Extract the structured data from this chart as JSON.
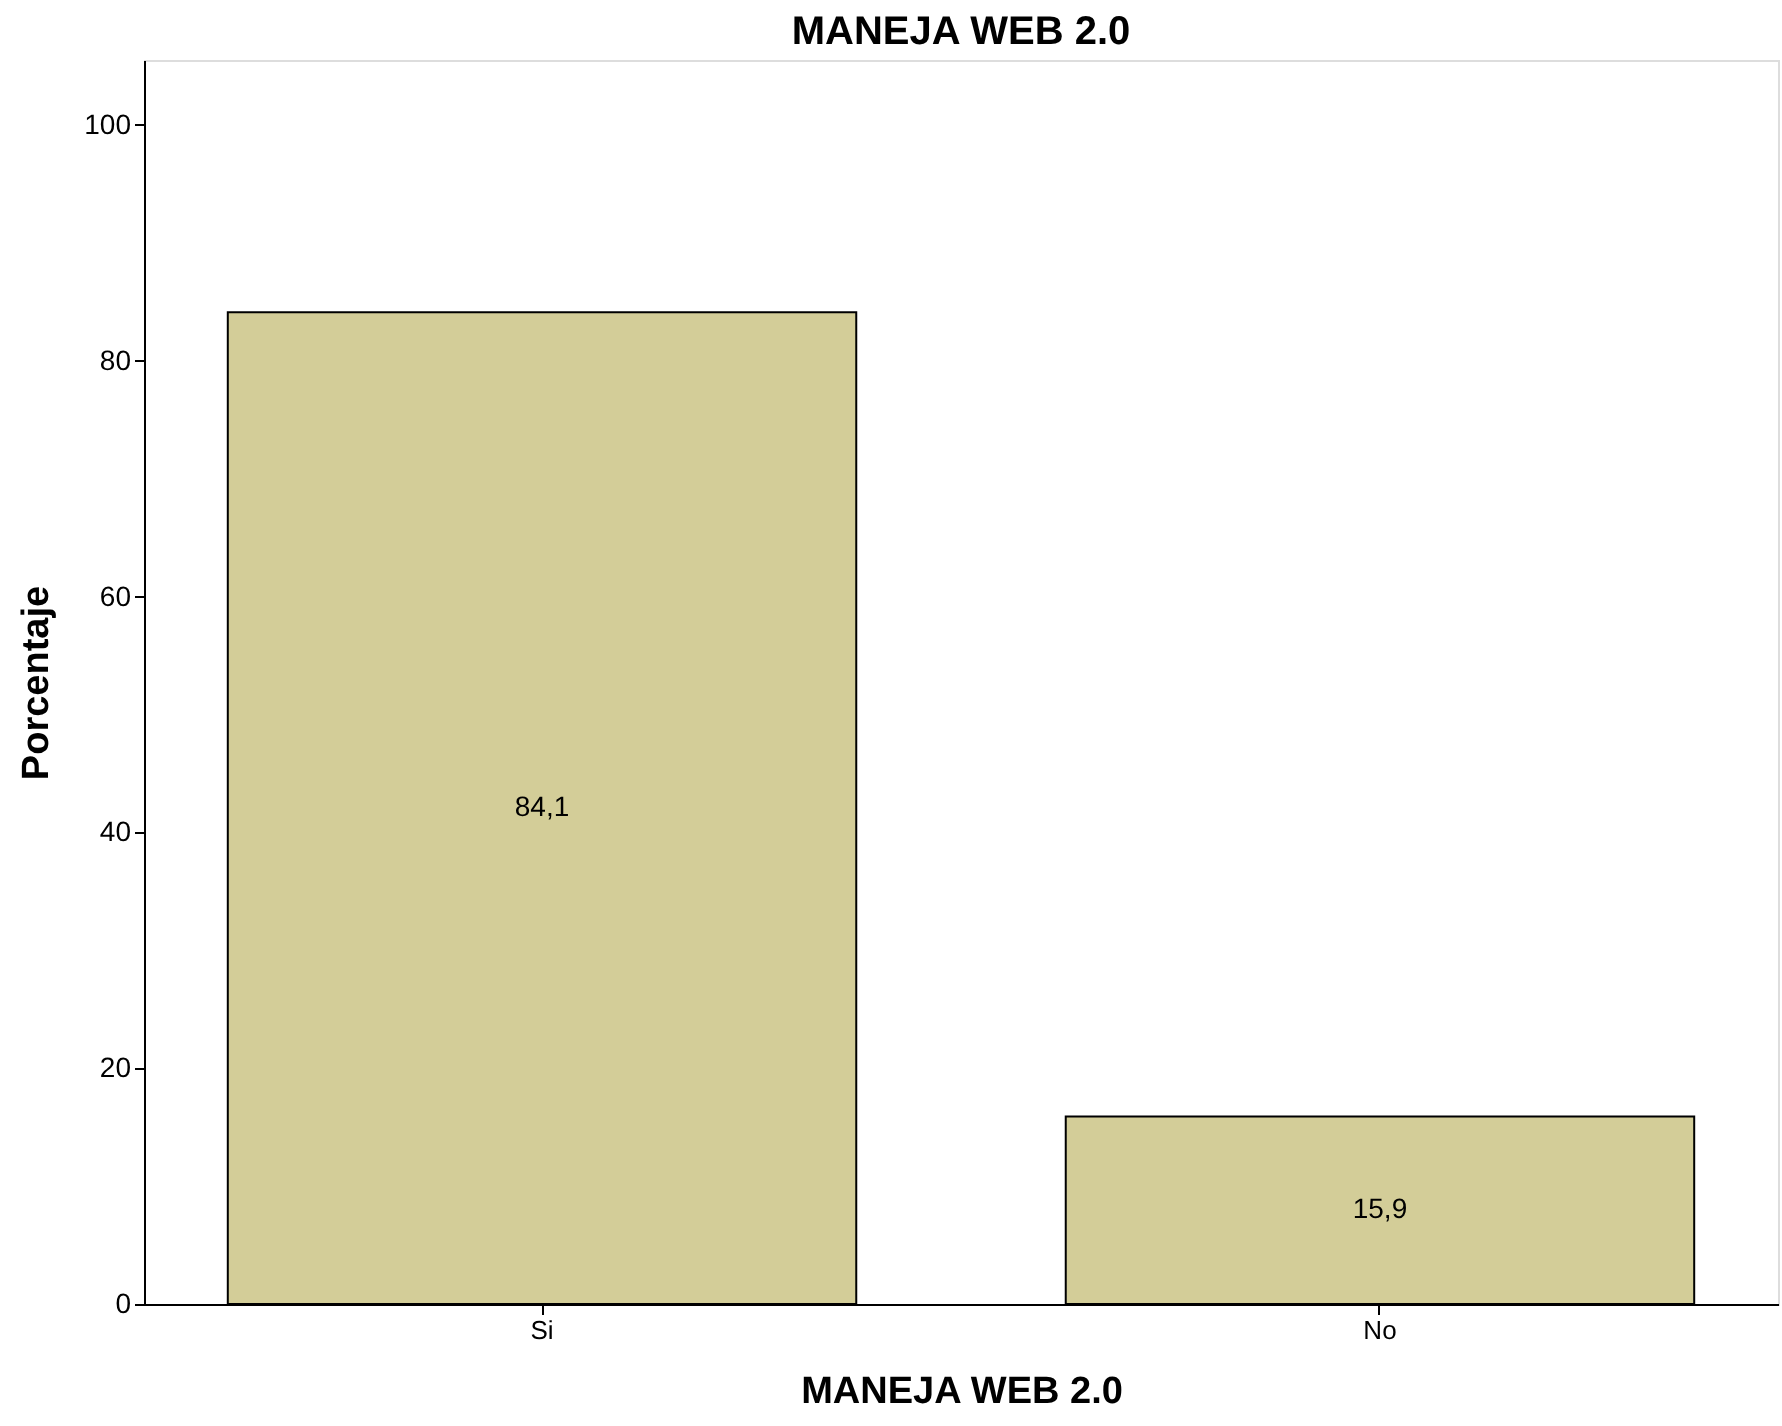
{
  "chart_data": {
    "type": "bar",
    "title": "MANEJA WEB 2.0",
    "xlabel": "MANEJA WEB 2.0",
    "ylabel": "Porcentaje",
    "categories": [
      "Si",
      "No"
    ],
    "values": [
      84.1,
      15.9
    ],
    "value_labels": [
      "84,1",
      "15,9"
    ],
    "color": "#d3cd98",
    "ylim": [
      0,
      105.5
    ],
    "yticks": [
      0,
      20,
      40,
      60,
      80,
      100
    ],
    "grid": false
  }
}
